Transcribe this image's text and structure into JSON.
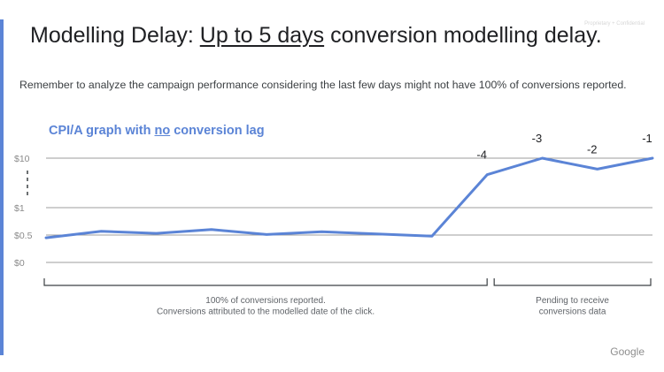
{
  "page": {
    "confidential_label": "Proprietary + Confidential",
    "title_prefix": "Modelling Delay: ",
    "title_emphasis": "Up to 5 days",
    "title_suffix": " conversion modelling delay.",
    "subtitle": "Remember to analyze the campaign performance considering the last few days might not have 100% of conversions reported.",
    "chart_heading_prefix": "CPI/A graph with ",
    "chart_heading_emphasis": "no",
    "chart_heading_suffix": " conversion lag",
    "footer_logo": "Google",
    "accent_color": "#5b84d6"
  },
  "chart_data": {
    "type": "line",
    "y_tick_labels": [
      "$10",
      "$1",
      "$0.5",
      "$0"
    ],
    "y_tick_values": [
      10,
      1,
      0.5,
      0
    ],
    "axis_break_between": [
      "$10",
      "$1"
    ],
    "series": [
      {
        "color": "#5b84d6",
        "values": [
          0.45,
          0.57,
          0.53,
          0.6,
          0.51,
          0.56,
          0.52,
          0.48,
          7,
          10,
          8,
          10
        ]
      }
    ],
    "point_labels": [
      {
        "index": 8,
        "text": "-4"
      },
      {
        "index": 9,
        "text": "-3"
      },
      {
        "index": 10,
        "text": "-2"
      },
      {
        "index": 11,
        "text": "-1"
      }
    ],
    "brackets": [
      {
        "from_index": 0,
        "to_index": 8,
        "lines": [
          "100% of conversions reported.",
          "Conversions attributed to the modelled date of the click."
        ]
      },
      {
        "from_index": 8,
        "to_index": 11,
        "lines": [
          "Pending to receive",
          "conversions data"
        ]
      }
    ],
    "grid": true
  }
}
